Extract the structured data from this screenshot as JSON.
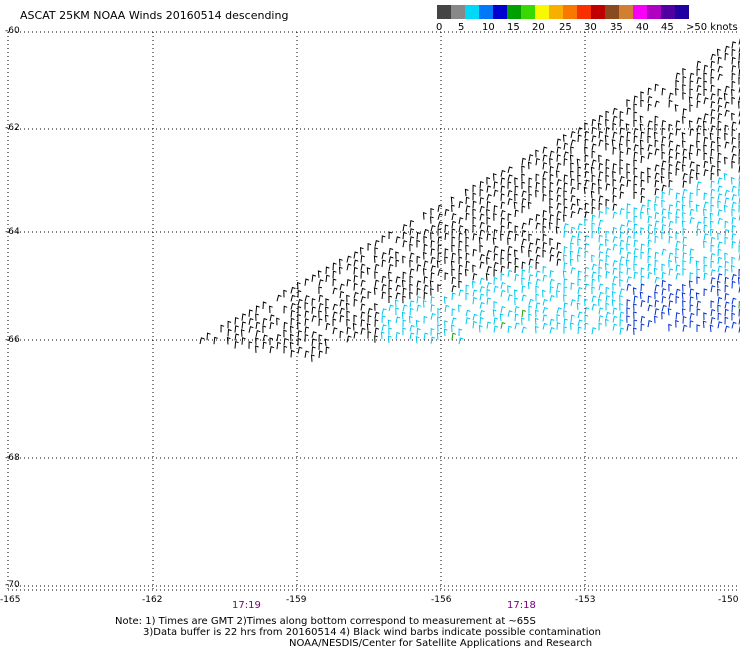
{
  "title": "ASCAT 25KM NOAA Winds 20160514 descending",
  "speed_scale": {
    "colors": [
      "#444444",
      "#888888",
      "#00d8f8",
      "#0078f8",
      "#0000d0",
      "#00a000",
      "#38d800",
      "#f8f800",
      "#f8b000",
      "#f87800",
      "#f83000",
      "#c00000",
      "#8a4a20",
      "#d08030",
      "#f800f8",
      "#b000c0",
      "#5000a0",
      "#2000a0"
    ],
    "labels": [
      "0",
      "5",
      "10",
      "15",
      "20",
      "25",
      "30",
      "35",
      "40",
      "45",
      ">50 knots"
    ]
  },
  "lat_labels": [
    "-60",
    "-62",
    "-64",
    "-66",
    "-68",
    "-70"
  ],
  "lon_labels": [
    "-165",
    "-162",
    "-159",
    "-156",
    "-153",
    "-150"
  ],
  "times": [
    "17:19",
    "17:18"
  ],
  "notes": [
    "Note: 1) Times are GMT 2)Times along bottom correspond to measurement at ~65S",
    "3)Data buffer is 22 hrs from 20160514 4) Black wind barbs indicate possible contamination",
    "NOAA/NESDIS/Center for Satellite Applications and Research"
  ]
}
